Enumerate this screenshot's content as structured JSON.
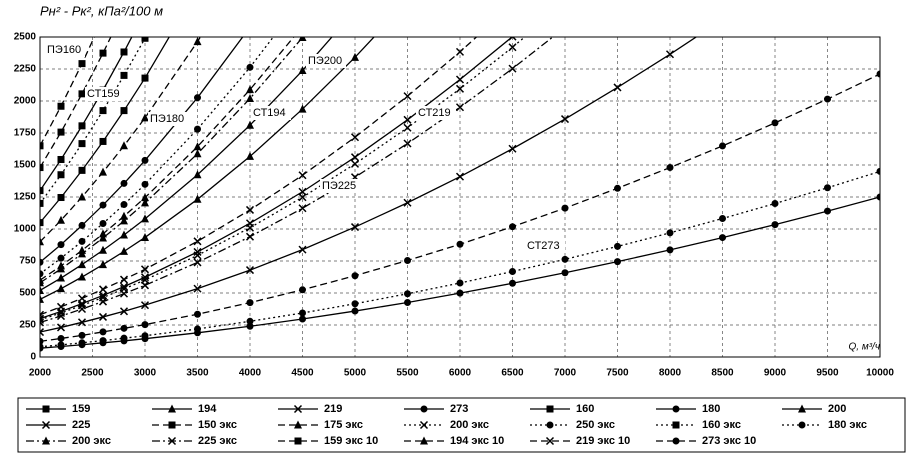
{
  "chart_data": {
    "type": "line",
    "y_label": "Pн² - Pк², кПа²/100 м",
    "x_label": "Q, м³/ч",
    "xlim": [
      2000,
      10000
    ],
    "ylim": [
      0,
      2500
    ],
    "xticks": [
      2000,
      2500,
      3000,
      3500,
      4000,
      4500,
      5000,
      5500,
      6000,
      6500,
      7000,
      7500,
      8000,
      8500,
      9000,
      9500,
      10000
    ],
    "yticks": [
      0,
      250,
      500,
      750,
      1000,
      1250,
      1500,
      1750,
      2000,
      2250,
      2500
    ],
    "grid": true,
    "annotations": [
      "ПЭ160",
      "СТ159",
      "ПЭ180",
      "СТ194",
      "ПЭ200",
      "СТ219",
      "ПЭ225",
      "СТ273"
    ],
    "x": [
      2000,
      2200,
      2400,
      2600,
      2800,
      3000,
      3500,
      4000,
      4500,
      5000,
      5500,
      6000,
      6500,
      7000,
      7500,
      8000,
      8500,
      9000,
      9500,
      10000
    ],
    "series": [
      {
        "name": "159",
        "color": "#000",
        "line": "solid",
        "marker": "square",
        "values": [
          1300,
          1543,
          1806,
          2085,
          2383,
          2698,
          null,
          null,
          null,
          null,
          null,
          null,
          null,
          null,
          null,
          null,
          null,
          null,
          null,
          null
        ]
      },
      {
        "name": "194",
        "color": "#000",
        "line": "solid",
        "marker": "triangle",
        "values": [
          520,
          617,
          722,
          834,
          953,
          1079,
          1424,
          1811,
          2238,
          2706,
          null,
          null,
          null,
          null,
          null,
          null,
          null,
          null,
          null,
          null
        ]
      },
      {
        "name": "219",
        "color": "#000",
        "line": "solid",
        "marker": "x",
        "values": [
          300,
          356,
          417,
          481,
          550,
          623,
          821,
          1045,
          1291,
          1561,
          1853,
          2168,
          2503,
          null,
          null,
          null,
          null,
          null,
          null,
          null
        ]
      },
      {
        "name": "273",
        "color": "#000",
        "line": "solid",
        "marker": "circle",
        "values": [
          69,
          82,
          96,
          111,
          126,
          143,
          189,
          240,
          297,
          359,
          426,
          499,
          576,
          658,
          745,
          837,
          933,
          1034,
          1140,
          1250
        ]
      },
      {
        "name": "160",
        "color": "#000",
        "line": "solid",
        "marker": "square",
        "values": [
          1050,
          1246,
          1458,
          1684,
          1925,
          2179,
          2875,
          null,
          null,
          null,
          null,
          null,
          null,
          null,
          null,
          null,
          null,
          null,
          null,
          null
        ]
      },
      {
        "name": "180",
        "color": "#000",
        "line": "solid",
        "marker": "circle",
        "values": [
          740,
          878,
          1028,
          1187,
          1356,
          1536,
          2026,
          2577,
          null,
          null,
          null,
          null,
          null,
          null,
          null,
          null,
          null,
          null,
          null,
          null
        ]
      },
      {
        "name": "200",
        "color": "#000",
        "line": "solid",
        "marker": "triangle",
        "values": [
          450,
          534,
          625,
          722,
          825,
          934,
          1232,
          1567,
          1937,
          2341,
          2780,
          null,
          null,
          null,
          null,
          null,
          null,
          null,
          null,
          null
        ]
      },
      {
        "name": "225",
        "color": "#000",
        "line": "solid",
        "marker": "x",
        "values": [
          195,
          231,
          271,
          313,
          357,
          405,
          534,
          679,
          839,
          1015,
          1205,
          1409,
          1627,
          1859,
          2106,
          2365,
          2636,
          null,
          null,
          null
        ]
      },
      {
        "name": "150 экс",
        "color": "#000",
        "line": "dashed",
        "marker": "square",
        "values": [
          1650,
          1959,
          2292,
          2647,
          null,
          null,
          null,
          null,
          null,
          null,
          null,
          null,
          null,
          null,
          null,
          null,
          null,
          null,
          null,
          null
        ]
      },
      {
        "name": "175 экс",
        "color": "#000",
        "line": "dashed",
        "marker": "triangle",
        "values": [
          900,
          1068,
          1250,
          1444,
          1650,
          1868,
          2464,
          3134,
          null,
          null,
          null,
          null,
          null,
          null,
          null,
          null,
          null,
          null,
          null,
          null
        ]
      },
      {
        "name": "200 экс",
        "color": "#000",
        "line": "dotted",
        "marker": "x",
        "values": [
          290,
          344,
          403,
          465,
          532,
          602,
          794,
          1010,
          1248,
          1509,
          1791,
          2095,
          2420,
          2765,
          null,
          null,
          null,
          null,
          null,
          null
        ]
      },
      {
        "name": "250 экс",
        "color": "#000",
        "line": "dotted",
        "marker": "circle",
        "values": [
          80,
          95,
          111,
          128,
          147,
          166,
          219,
          279,
          344,
          416,
          494,
          578,
          668,
          763,
          864,
          970,
          1082,
          1199,
          1322,
          1450
        ]
      },
      {
        "name": "160 экс",
        "color": "#000",
        "line": "dotted",
        "marker": "square",
        "values": [
          1200,
          1424,
          1667,
          1925,
          2200,
          2490,
          null,
          null,
          null,
          null,
          null,
          null,
          null,
          null,
          null,
          null,
          null,
          null,
          null,
          null
        ]
      },
      {
        "name": "180 экс",
        "color": "#000",
        "line": "dotted",
        "marker": "circle",
        "values": [
          650,
          772,
          903,
          1043,
          1191,
          1349,
          1780,
          2263,
          2798,
          null,
          null,
          null,
          null,
          null,
          null,
          null,
          null,
          null,
          null,
          null
        ]
      },
      {
        "name": "200 экс",
        "color": "#000",
        "line": "dashdot",
        "marker": "triangle",
        "values": [
          580,
          688,
          806,
          930,
          1063,
          1204,
          1588,
          2020,
          2496,
          null,
          null,
          null,
          null,
          null,
          null,
          null,
          null,
          null,
          null,
          null
        ]
      },
      {
        "name": "225 экс",
        "color": "#000",
        "line": "dashdot",
        "marker": "x",
        "values": [
          270,
          320,
          375,
          433,
          495,
          560,
          739,
          940,
          1162,
          1405,
          1668,
          1951,
          2253,
          2575,
          null,
          null,
          null,
          null,
          null,
          null
        ]
      },
      {
        "name": "159 экс 10",
        "color": "#000",
        "line": "dashed",
        "marker": "square",
        "values": [
          1480,
          1757,
          2056,
          2374,
          2713,
          null,
          null,
          null,
          null,
          null,
          null,
          null,
          null,
          null,
          null,
          null,
          null,
          null,
          null,
          null
        ]
      },
      {
        "name": "194 экс 10",
        "color": "#000",
        "line": "dashed",
        "marker": "triangle",
        "values": [
          600,
          712,
          833,
          962,
          1100,
          1245,
          1643,
          2089,
          2582,
          null,
          null,
          null,
          null,
          null,
          null,
          null,
          null,
          null,
          null,
          null
        ]
      },
      {
        "name": "219 экс 10",
        "color": "#000",
        "line": "dashed",
        "marker": "x",
        "values": [
          330,
          392,
          458,
          529,
          605,
          685,
          904,
          1149,
          1420,
          1717,
          2038,
          2384,
          2754,
          null,
          null,
          null,
          null,
          null,
          null,
          null
        ]
      },
      {
        "name": "273 экс 10",
        "color": "#000",
        "line": "dashed",
        "marker": "circle",
        "values": [
          122,
          145,
          169,
          196,
          224,
          253,
          334,
          425,
          525,
          635,
          754,
          881,
          1018,
          1163,
          1318,
          1480,
          1649,
          1829,
          2015,
          2211
        ]
      }
    ]
  }
}
